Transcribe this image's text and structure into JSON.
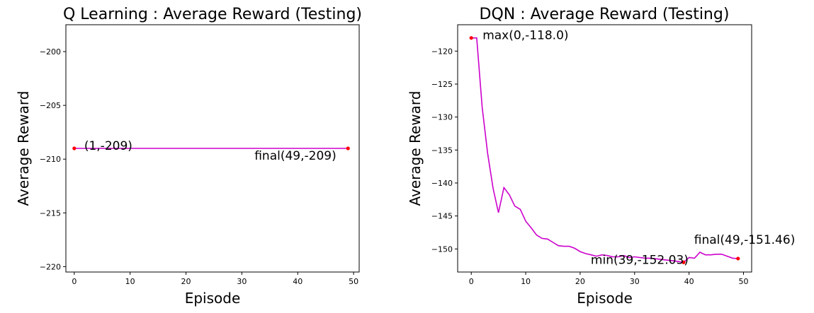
{
  "chart_data": [
    {
      "type": "line",
      "title": "Q Learning : Average Reward (Testing)",
      "xlabel": "Episode",
      "ylabel": "Average Reward",
      "xlim": [
        -1.5,
        51
      ],
      "ylim": [
        -220.5,
        -197.5
      ],
      "x_ticks": [
        0,
        10,
        20,
        30,
        40,
        50
      ],
      "y_ticks": [
        -200,
        -205,
        -210,
        -215,
        -220
      ],
      "line_color": "#cc00cc",
      "marker_color": "#ff0000",
      "series": [
        {
          "x": [
            0,
            49
          ],
          "y": [
            -209,
            -209
          ]
        }
      ],
      "markers": [
        {
          "x": 0,
          "y": -209
        },
        {
          "x": 49,
          "y": -209
        }
      ],
      "annotations": [
        {
          "text": "(1,-209)",
          "x": 0,
          "y": -209
        },
        {
          "text": "final(49,-209)",
          "x": 49,
          "y": -209
        }
      ]
    },
    {
      "type": "line",
      "title": "DQN : Average Reward (Testing)",
      "xlabel": "Episode",
      "ylabel": "Average Reward",
      "xlim": [
        -2.5,
        51.5
      ],
      "ylim": [
        -153.5,
        -116
      ],
      "x_ticks": [
        0,
        10,
        20,
        30,
        40,
        50
      ],
      "y_ticks": [
        -120,
        -125,
        -130,
        -135,
        -140,
        -145,
        -150
      ],
      "line_color": "#cc00cc",
      "marker_color": "#ff0000",
      "series": [
        {
          "x": [
            0,
            1,
            2,
            3,
            4,
            5,
            6,
            7,
            8,
            9,
            10,
            11,
            12,
            13,
            14,
            15,
            16,
            17,
            18,
            19,
            20,
            21,
            22,
            23,
            24,
            25,
            26,
            27,
            28,
            29,
            30,
            31,
            32,
            33,
            34,
            35,
            36,
            37,
            38,
            39,
            40,
            41,
            42,
            43,
            44,
            45,
            46,
            47,
            48,
            49
          ],
          "y": [
            -118.0,
            -118.0,
            -128.5,
            -135.5,
            -140.8,
            -144.5,
            -140.7,
            -141.8,
            -143.5,
            -144.0,
            -145.8,
            -146.8,
            -147.9,
            -148.4,
            -148.5,
            -149.0,
            -149.5,
            -149.6,
            -149.6,
            -149.9,
            -150.4,
            -150.7,
            -150.9,
            -151.1,
            -150.9,
            -151.0,
            -151.2,
            -151.2,
            -151.0,
            -151.3,
            -151.2,
            -151.3,
            -151.4,
            -151.4,
            -151.5,
            -151.6,
            -151.7,
            -151.8,
            -151.9,
            -152.03,
            -151.3,
            -151.4,
            -150.5,
            -150.9,
            -150.9,
            -150.8,
            -150.8,
            -151.1,
            -151.4,
            -151.46
          ]
        }
      ],
      "markers": [
        {
          "x": 0,
          "y": -118.0
        },
        {
          "x": 39,
          "y": -152.03
        },
        {
          "x": 49,
          "y": -151.46
        }
      ],
      "annotations": [
        {
          "text": "max(0,-118.0)",
          "x": 0,
          "y": -118.0
        },
        {
          "text": "min(39,-152.03)",
          "x": 39,
          "y": -152.03
        },
        {
          "text": "final(49,-151.46)",
          "x": 49,
          "y": -151.46
        }
      ]
    }
  ]
}
